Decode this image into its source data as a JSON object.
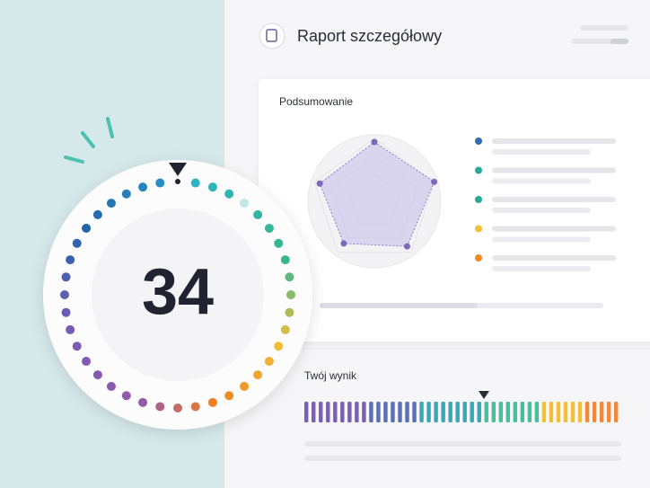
{
  "header": {
    "title": "Raport szczegółowy"
  },
  "summary": {
    "title": "Podsumowanie"
  },
  "result": {
    "title": "Twój wynik"
  },
  "score": 34
}
